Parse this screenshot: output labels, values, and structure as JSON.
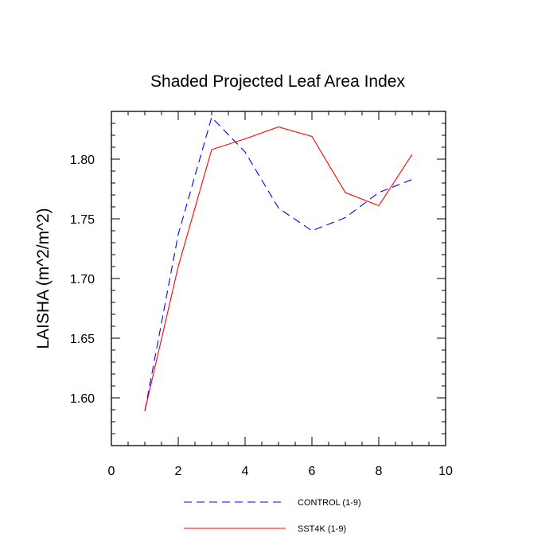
{
  "chart_data": {
    "type": "line",
    "title": "Shaded Projected Leaf Area Index",
    "xlabel": "",
    "ylabel": "LAISHA  (m^2/m^2)",
    "xlim": [
      0,
      10
    ],
    "ylim": [
      1.56,
      1.84
    ],
    "x_ticks": [
      0,
      2,
      4,
      6,
      8,
      10
    ],
    "x_tick_labels": [
      "0",
      "2",
      "4",
      "6",
      "8",
      "10"
    ],
    "y_ticks": [
      1.6,
      1.65,
      1.7,
      1.75,
      1.8
    ],
    "y_tick_labels": [
      "1.60",
      "1.65",
      "1.70",
      "1.75",
      "1.80"
    ],
    "grid": false,
    "legend_position": "bottom",
    "series": [
      {
        "name": "CONTROL (1-9)",
        "color": "#0000ff",
        "style": "dashed",
        "x": [
          1,
          2,
          3,
          4,
          5,
          6,
          7,
          8,
          9
        ],
        "y": [
          1.589,
          1.737,
          1.835,
          1.806,
          1.759,
          1.74,
          1.751,
          1.772,
          1.783
        ]
      },
      {
        "name": "SST4K (1-9)",
        "color": "#ff0000",
        "style": "solid",
        "x": [
          1,
          2,
          3,
          4,
          5,
          6,
          7,
          8,
          9
        ],
        "y": [
          1.589,
          1.71,
          1.808,
          1.817,
          1.827,
          1.819,
          1.772,
          1.761,
          1.804
        ]
      }
    ]
  }
}
